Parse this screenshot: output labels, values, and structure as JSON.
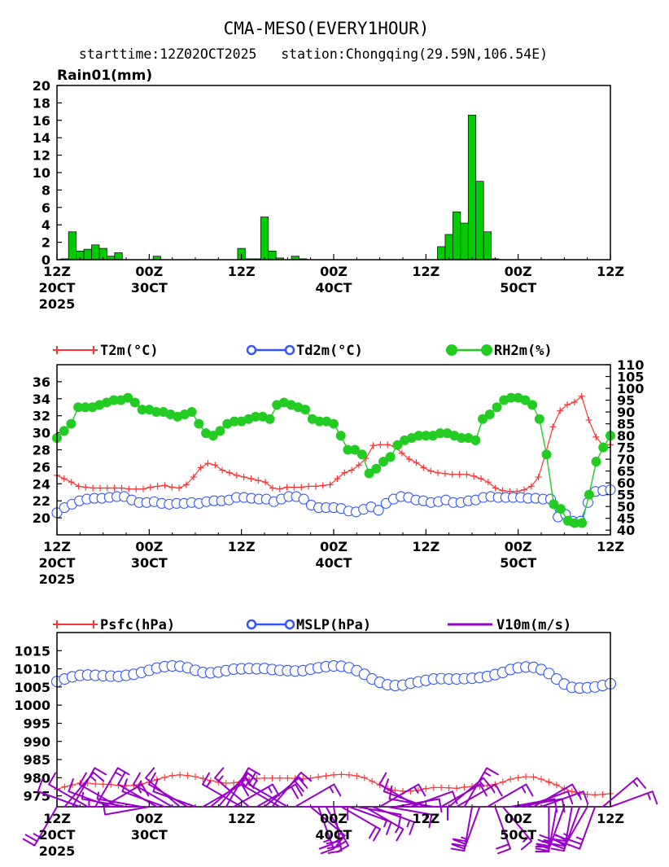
{
  "header": {
    "title": "CMA-MESO(EVERY1HOUR)",
    "subtitle": "starttime:12Z02OCT2025   station:Chongqing(29.59N,106.54E)"
  },
  "colors": {
    "rain": "#00cc00",
    "t2m": "#ff3333",
    "td2m": "#3355ff",
    "rh2m": "#22cc22",
    "psfc": "#ff3333",
    "mslp": "#3355ff",
    "wind": "#9900cc"
  },
  "x_axis": {
    "ticks": [
      {
        "hour": 0,
        "label": "12Z",
        "date": "20CT",
        "year": "2025"
      },
      {
        "hour": 12,
        "label": "00Z",
        "date": "30CT",
        "year": ""
      },
      {
        "hour": 24,
        "label": "12Z",
        "date": "",
        "year": ""
      },
      {
        "hour": 36,
        "label": "00Z",
        "date": "40CT",
        "year": ""
      },
      {
        "hour": 48,
        "label": "12Z",
        "date": "",
        "year": ""
      },
      {
        "hour": 60,
        "label": "00Z",
        "date": "50CT",
        "year": ""
      },
      {
        "hour": 72,
        "label": "12Z",
        "date": "",
        "year": ""
      }
    ],
    "range": [
      0,
      72
    ]
  },
  "chart_data": [
    {
      "type": "bar",
      "panel": "rain",
      "title": "Rain01(mm)",
      "ylim": [
        0,
        20
      ],
      "yticks": [
        0,
        2,
        4,
        6,
        8,
        10,
        12,
        14,
        16,
        18,
        20
      ],
      "series": [
        {
          "name": "Rain01(mm)",
          "hours": [
            1,
            2,
            3,
            4,
            5,
            6,
            7,
            8,
            13,
            24,
            25,
            26,
            27,
            28,
            29,
            31,
            32,
            50,
            51,
            52,
            53,
            54,
            55,
            56,
            57
          ],
          "values": [
            0.1,
            3.2,
            1.0,
            1.2,
            1.7,
            1.3,
            0.4,
            0.8,
            0.4,
            1.3,
            0.1,
            0.1,
            4.9,
            1.0,
            0.2,
            0.4,
            0.1,
            1.5,
            2.9,
            5.5,
            4.2,
            16.6,
            9.0,
            3.2,
            0.1
          ]
        }
      ]
    },
    {
      "type": "line",
      "panel": "thermo",
      "legend": [
        "T2m(°C)",
        "Td2m(°C)",
        "RH2m(%)"
      ],
      "ylim_left": [
        18,
        38
      ],
      "yticks_left": [
        20,
        22,
        24,
        26,
        28,
        30,
        32,
        34,
        36
      ],
      "ylim_right": [
        38,
        110
      ],
      "yticks_right": [
        40,
        45,
        50,
        55,
        60,
        65,
        70,
        75,
        80,
        85,
        90,
        95,
        100,
        105,
        110
      ],
      "series": [
        {
          "name": "T2m(°C)",
          "axis": "left",
          "values": [
            25,
            24.6,
            24.2,
            23.7,
            23.6,
            23.5,
            23.5,
            23.5,
            23.5,
            23.5,
            23.4,
            23.4,
            23.4,
            23.6,
            23.7,
            23.8,
            23.6,
            23.5,
            23.9,
            24.8,
            25.9,
            26.4,
            26.2,
            25.6,
            25.3,
            25,
            24.8,
            24.6,
            24.4,
            24.2,
            23.5,
            23.4,
            23.6,
            23.6,
            23.6,
            23.7,
            23.7,
            23.8,
            23.9,
            24.6,
            25.3,
            25.6,
            26.2,
            27,
            28.5,
            28.6,
            28.6,
            28.4,
            27.6,
            26.9,
            26.5,
            25.9,
            25.5,
            25.3,
            25.2,
            25.1,
            25.1,
            25.1,
            24.9,
            24.6,
            24.2,
            23.5,
            23.2,
            23.1,
            23.1,
            23.3,
            23.7,
            24.8,
            27.6,
            30.7,
            32.6,
            33.3,
            33.6,
            34.3,
            31.5,
            29.5,
            28.5,
            28.6
          ]
        },
        {
          "name": "Td2m(°C)",
          "axis": "left",
          "values": [
            20.6,
            21.2,
            21.6,
            22,
            22.2,
            22.3,
            22.3,
            22.4,
            22.5,
            22.5,
            22.1,
            21.8,
            21.8,
            21.9,
            21.7,
            21.6,
            21.7,
            21.7,
            21.8,
            21.7,
            21.9,
            22,
            22,
            22.1,
            22.4,
            22.4,
            22.3,
            22.2,
            22.2,
            21.9,
            22.2,
            22.5,
            22.5,
            22.2,
            21.5,
            21.2,
            21.2,
            21.2,
            21.1,
            20.8,
            20.7,
            21,
            21.3,
            20.9,
            21.7,
            22.2,
            22.5,
            22.4,
            22.1,
            22,
            21.8,
            21.9,
            22.1,
            21.8,
            21.8,
            22,
            22.1,
            22.4,
            22.5,
            22.4,
            22.4,
            22.4,
            22.4,
            22.3,
            22.3,
            22.2,
            22.2,
            20.1,
            20.4,
            19.6,
            19.6,
            21.8,
            23.1,
            23.2,
            23.3
          ]
        },
        {
          "name": "RH2m(%)",
          "axis": "right",
          "values": [
            79,
            82,
            85,
            92,
            92,
            92,
            93,
            94,
            95,
            95,
            96,
            94,
            91,
            91,
            90,
            90,
            89,
            88,
            89,
            90,
            85,
            81,
            80,
            82,
            85,
            86,
            86,
            87,
            88,
            88,
            87,
            93,
            94,
            93,
            92,
            91,
            87,
            86,
            86,
            85,
            80,
            74,
            74,
            72,
            64,
            66,
            69,
            71,
            76,
            78,
            79,
            80,
            80,
            80,
            81,
            81,
            80,
            79,
            79,
            78,
            87,
            89,
            92,
            95,
            96,
            96,
            95,
            93,
            87,
            72,
            51,
            49,
            44,
            43,
            43,
            55,
            69,
            75,
            80
          ]
        }
      ]
    },
    {
      "type": "line",
      "panel": "pressure",
      "legend": [
        "Psfc(hPa)",
        "MSLP(hPa)",
        "V10m(m/s)"
      ],
      "ylim": [
        972,
        1020
      ],
      "yticks": [
        975,
        980,
        985,
        990,
        995,
        1000,
        1005,
        1010,
        1015
      ],
      "series": [
        {
          "name": "Psfc(hPa)",
          "values": [
            976.8,
            977.5,
            978,
            978.5,
            978.5,
            978.3,
            978.2,
            978.1,
            977.9,
            977.8,
            977.9,
            978.3,
            978.8,
            979.5,
            980.1,
            980.6,
            980.8,
            980.6,
            980.3,
            979.8,
            979.2,
            978.8,
            978.5,
            978.6,
            979,
            979.5,
            979.8,
            979.9,
            979.9,
            979.9,
            979.9,
            979.8,
            979.7,
            979.9,
            980.2,
            980.5,
            980.8,
            980.9,
            980.8,
            980.5,
            980,
            979,
            978,
            977,
            976.5,
            976.3,
            976.3,
            976.5,
            977,
            977.3,
            977.3,
            977.2,
            977.1,
            977.4,
            977.6,
            977.6,
            977.8,
            978.2,
            978.8,
            979.6,
            980,
            980.3,
            980.2,
            979.6,
            978.8,
            978,
            977,
            976.2,
            975.6,
            975.4,
            975.3,
            975.4,
            975.6
          ]
        },
        {
          "name": "MSLP(hPa)",
          "values": [
            1006.5,
            1007.2,
            1007.8,
            1008.2,
            1008.3,
            1008.2,
            1008.1,
            1008,
            1007.9,
            1008.2,
            1008.5,
            1009,
            1009.6,
            1010.2,
            1010.6,
            1010.8,
            1010.7,
            1010.3,
            1009.6,
            1009,
            1008.9,
            1009.1,
            1009.5,
            1009.9,
            1010,
            1010.1,
            1010,
            1010.1,
            1009.8,
            1009.6,
            1009.5,
            1009.4,
            1009.5,
            1009.9,
            1010.3,
            1010.6,
            1010.8,
            1010.7,
            1010.3,
            1009.5,
            1008.5,
            1007.2,
            1006.3,
            1005.6,
            1005.4,
            1005.5,
            1006,
            1006.4,
            1006.8,
            1007.2,
            1007.3,
            1007.2,
            1007.2,
            1007.3,
            1007.4,
            1007.6,
            1007.9,
            1008.4,
            1009,
            1009.8,
            1010.3,
            1010.5,
            1010.4,
            1009.8,
            1008.7,
            1007.2,
            1005.8,
            1004.9,
            1004.7,
            1004.8,
            1005,
            1005.4,
            1005.9
          ]
        }
      ],
      "wind_barbs": [
        {
          "hour": 0,
          "dir": 210,
          "speed": 11
        },
        {
          "hour": 1,
          "dir": 40,
          "speed": 6
        },
        {
          "hour": 2,
          "dir": 30,
          "speed": 5
        },
        {
          "hour": 3,
          "dir": 290,
          "speed": 5
        },
        {
          "hour": 4,
          "dir": 300,
          "speed": 4
        },
        {
          "hour": 5,
          "dir": 30,
          "speed": 6
        },
        {
          "hour": 6,
          "dir": 60,
          "speed": 6
        },
        {
          "hour": 7,
          "dir": 290,
          "speed": 5
        },
        {
          "hour": 8,
          "dir": 300,
          "speed": 5
        },
        {
          "hour": 9,
          "dir": 280,
          "speed": 3
        },
        {
          "hour": 10,
          "dir": 270,
          "speed": 2
        },
        {
          "hour": 11,
          "dir": 280,
          "speed": 2
        },
        {
          "hour": 12,
          "dir": 260,
          "speed": 3
        },
        {
          "hour": 13,
          "dir": 300,
          "speed": 4
        },
        {
          "hour": 14,
          "dir": 290,
          "speed": 5
        },
        {
          "hour": 15,
          "dir": 300,
          "speed": 6
        },
        {
          "hour": 16,
          "dir": 310,
          "speed": 5
        },
        {
          "hour": 17,
          "dir": 300,
          "speed": 5
        },
        {
          "hour": 18,
          "dir": 290,
          "speed": 4
        },
        {
          "hour": 19,
          "dir": 60,
          "speed": 5
        },
        {
          "hour": 20,
          "dir": 50,
          "speed": 6
        },
        {
          "hour": 21,
          "dir": 40,
          "speed": 7
        },
        {
          "hour": 22,
          "dir": 30,
          "speed": 7
        },
        {
          "hour": 23,
          "dir": 60,
          "speed": 7
        },
        {
          "hour": 24,
          "dir": 300,
          "speed": 6
        },
        {
          "hour": 25,
          "dir": 310,
          "speed": 7
        },
        {
          "hour": 26,
          "dir": 60,
          "speed": 8
        },
        {
          "hour": 27,
          "dir": 50,
          "speed": 8
        },
        {
          "hour": 28,
          "dir": 40,
          "speed": 7
        },
        {
          "hour": 29,
          "dir": 300,
          "speed": 6
        },
        {
          "hour": 30,
          "dir": 300,
          "speed": 7
        },
        {
          "hour": 31,
          "dir": 60,
          "speed": 7
        },
        {
          "hour": 32,
          "dir": 90,
          "speed": 5
        },
        {
          "hour": 33,
          "dir": 130,
          "speed": 7
        },
        {
          "hour": 34,
          "dir": 160,
          "speed": 11
        },
        {
          "hour": 35,
          "dir": 150,
          "speed": 12
        },
        {
          "hour": 36,
          "dir": 170,
          "speed": 13
        },
        {
          "hour": 37,
          "dir": 120,
          "speed": 9
        },
        {
          "hour": 38,
          "dir": 110,
          "speed": 6
        },
        {
          "hour": 39,
          "dir": 100,
          "speed": 5
        },
        {
          "hour": 40,
          "dir": 120,
          "speed": 6
        },
        {
          "hour": 41,
          "dir": 110,
          "speed": 6
        },
        {
          "hour": 42,
          "dir": 60,
          "speed": 6
        },
        {
          "hour": 43,
          "dir": 100,
          "speed": 6
        },
        {
          "hour": 44,
          "dir": 80,
          "speed": 5
        },
        {
          "hour": 45,
          "dir": 90,
          "speed": 5
        },
        {
          "hour": 46,
          "dir": 70,
          "speed": 4
        },
        {
          "hour": 47,
          "dir": 300,
          "speed": 4
        },
        {
          "hour": 48,
          "dir": 290,
          "speed": 4
        },
        {
          "hour": 49,
          "dir": 280,
          "speed": 4
        },
        {
          "hour": 50,
          "dir": 60,
          "speed": 5
        },
        {
          "hour": 51,
          "dir": 50,
          "speed": 6
        },
        {
          "hour": 52,
          "dir": 60,
          "speed": 6
        },
        {
          "hour": 53,
          "dir": 30,
          "speed": 7
        },
        {
          "hour": 54,
          "dir": 190,
          "speed": 12
        },
        {
          "hour": 55,
          "dir": 200,
          "speed": 10
        },
        {
          "hour": 56,
          "dir": 60,
          "speed": 6
        },
        {
          "hour": 57,
          "dir": 160,
          "speed": 8
        },
        {
          "hour": 58,
          "dir": 140,
          "speed": 6
        },
        {
          "hour": 59,
          "dir": 80,
          "speed": 5
        },
        {
          "hour": 60,
          "dir": 80,
          "speed": 5
        },
        {
          "hour": 61,
          "dir": 70,
          "speed": 5
        },
        {
          "hour": 62,
          "dir": 60,
          "speed": 5
        },
        {
          "hour": 63,
          "dir": 70,
          "speed": 7
        },
        {
          "hour": 64,
          "dir": 180,
          "speed": 10
        },
        {
          "hour": 65,
          "dir": 190,
          "speed": 11
        },
        {
          "hour": 66,
          "dir": 200,
          "speed": 13
        },
        {
          "hour": 67,
          "dir": 190,
          "speed": 12
        },
        {
          "hour": 68,
          "dir": 200,
          "speed": 12
        },
        {
          "hour": 69,
          "dir": 210,
          "speed": 11
        },
        {
          "hour": 70,
          "dir": 200,
          "speed": 10
        },
        {
          "hour": 71,
          "dir": 50,
          "speed": 6
        },
        {
          "hour": 72,
          "dir": 70,
          "speed": 6
        }
      ]
    }
  ]
}
